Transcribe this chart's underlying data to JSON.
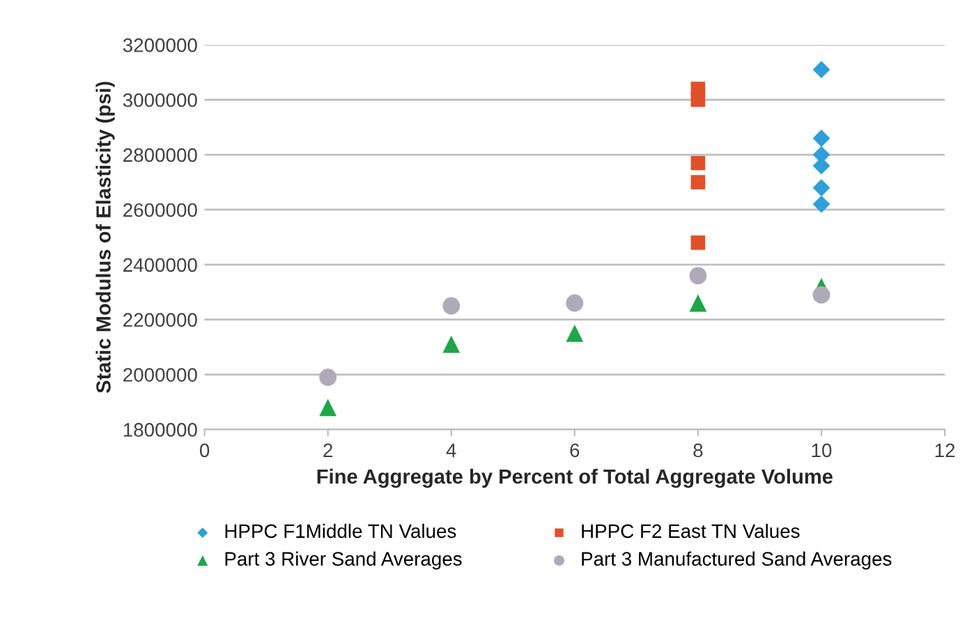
{
  "chart_data": {
    "type": "scatter",
    "xlabel": "Fine Aggregate by Percent of Total Aggregate Volume",
    "ylabel": "Static Modulus of Elasticity (psi)",
    "xlim": [
      0,
      12
    ],
    "xticks": [
      0,
      2,
      4,
      6,
      8,
      10,
      12
    ],
    "ylim": [
      1800000,
      3200000
    ],
    "yticks": [
      1800000,
      2000000,
      2200000,
      2400000,
      2600000,
      2800000,
      3000000,
      3200000
    ],
    "grid": "y",
    "legend": "bottom",
    "series": [
      {
        "name": "HPPC F1Middle TN Values",
        "color": "#2e9fd9",
        "marker": "diamond",
        "x": [
          10,
          10,
          10,
          10,
          10,
          10
        ],
        "values": [
          3110000,
          2860000,
          2800000,
          2760000,
          2680000,
          2620000
        ]
      },
      {
        "name": "HPPC F2 East TN Values",
        "color": "#e0502a",
        "marker": "square",
        "x": [
          8,
          8,
          8,
          8,
          8
        ],
        "values": [
          3040000,
          3000000,
          2770000,
          2700000,
          2480000
        ]
      },
      {
        "name": "Part 3 River Sand Averages",
        "color": "#1fa54a",
        "marker": "triangle",
        "x": [
          2,
          4,
          6,
          8,
          10
        ],
        "values": [
          1880000,
          2110000,
          2150000,
          2260000,
          2320000
        ]
      },
      {
        "name": "Part 3 Manufactured Sand Averages",
        "color": "#aeaab8",
        "marker": "circle",
        "x": [
          2,
          4,
          6,
          8,
          10
        ],
        "values": [
          1990000,
          2250000,
          2260000,
          2360000,
          2290000
        ]
      }
    ]
  }
}
